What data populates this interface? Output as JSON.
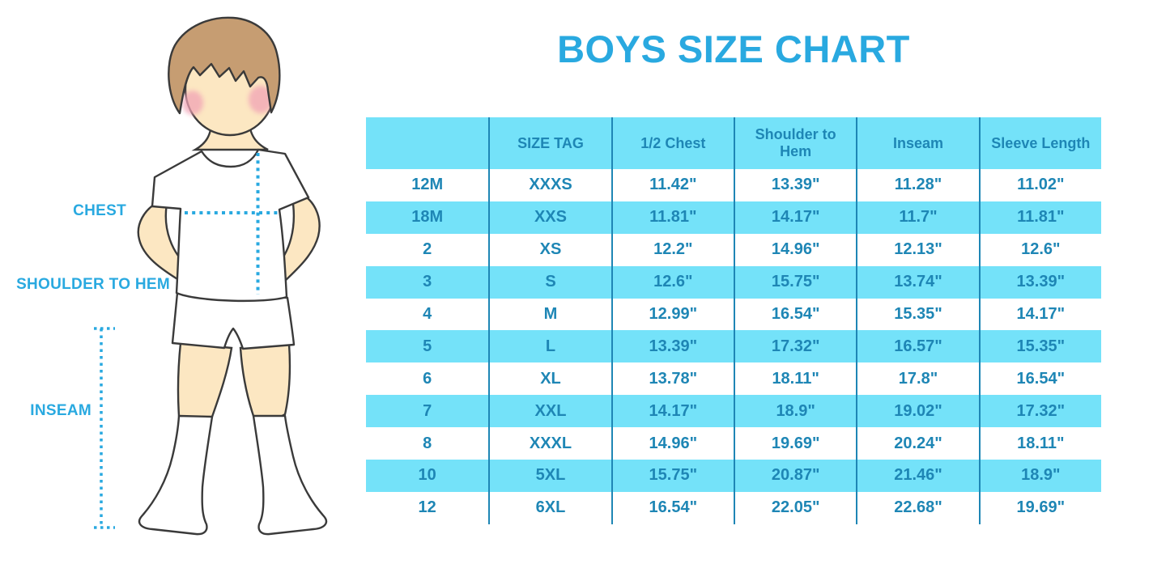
{
  "title": "BOYS SIZE CHART",
  "colors": {
    "background": "#FFFFFF",
    "accent_blue": "#29A9E0",
    "table_stripe_cyan": "#74E2F9",
    "table_text_blue": "#1E86B5",
    "table_divider_blue": "#1E86B5",
    "skin": "#FCE7C2",
    "hair_brown": "#C69D72",
    "blush_pink": "#F1A3B5",
    "outline_dark": "#3A3A3A",
    "garment_white": "#FFFFFF"
  },
  "figure_labels": {
    "chest": "CHEST",
    "shoulder_to_hem": "SHOULDER TO HEM",
    "inseam": "INSEAM"
  },
  "chart_data": {
    "type": "table",
    "title": "BOYS SIZE CHART",
    "columns": [
      "",
      "SIZE TAG",
      "1/2 Chest",
      "Shoulder to Hem",
      "Inseam",
      "Sleeve Length"
    ],
    "rows": [
      [
        "12M",
        "XXXS",
        "11.42\"",
        "13.39\"",
        "11.28\"",
        "11.02\""
      ],
      [
        "18M",
        "XXS",
        "11.81\"",
        "14.17\"",
        "11.7\"",
        "11.81\""
      ],
      [
        "2",
        "XS",
        "12.2\"",
        "14.96\"",
        "12.13\"",
        "12.6\""
      ],
      [
        "3",
        "S",
        "12.6\"",
        "15.75\"",
        "13.74\"",
        "13.39\""
      ],
      [
        "4",
        "M",
        "12.99\"",
        "16.54\"",
        "15.35\"",
        "14.17\""
      ],
      [
        "5",
        "L",
        "13.39\"",
        "17.32\"",
        "16.57\"",
        "15.35\""
      ],
      [
        "6",
        "XL",
        "13.78\"",
        "18.11\"",
        "17.8\"",
        "16.54\""
      ],
      [
        "7",
        "XXL",
        "14.17\"",
        "18.9\"",
        "19.02\"",
        "17.32\""
      ],
      [
        "8",
        "XXXL",
        "14.96\"",
        "19.69\"",
        "20.24\"",
        "18.11\""
      ],
      [
        "10",
        "5XL",
        "15.75\"",
        "20.87\"",
        "21.46\"",
        "18.9\""
      ],
      [
        "12",
        "6XL",
        "16.54\"",
        "22.05\"",
        "22.68\"",
        "19.69\""
      ]
    ],
    "striped_row_indices": [
      1,
      3,
      5,
      7,
      9
    ],
    "header_row_shaded": true,
    "grid": "vertical-dividers-only",
    "legend_position": "none"
  }
}
